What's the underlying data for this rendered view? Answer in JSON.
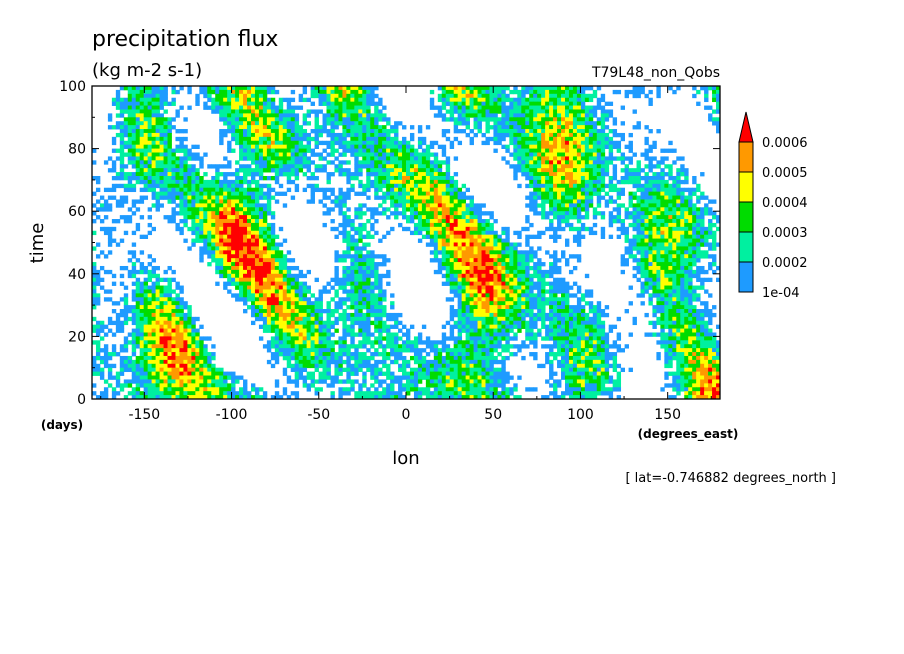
{
  "chart_data": {
    "type": "heatmap",
    "title": "precipitation flux",
    "units": "(kg m-2 s-1)",
    "run_label": "T79L48_non_Qobs",
    "xlabel": "lon",
    "ylabel": "time",
    "x_unit_label": "(degrees_east)",
    "y_unit_label": "(days)",
    "footnote": "[ lat=-0.746882 degrees_north ]",
    "xlim": [
      -180,
      180
    ],
    "ylim": [
      0,
      100
    ],
    "x_ticks": [
      -150,
      -100,
      -50,
      0,
      50,
      100,
      150
    ],
    "y_ticks": [
      0,
      20,
      40,
      60,
      80,
      100
    ],
    "colorbar": {
      "levels": [
        "1e-04",
        "0.0002",
        "0.0003",
        "0.0004",
        "0.0005",
        "0.0006"
      ],
      "colors": [
        "#1e9bff",
        "#00f0a0",
        "#00dc00",
        "#ffff00",
        "#ff9900",
        "#ff0000"
      ],
      "extend": "max"
    }
  }
}
